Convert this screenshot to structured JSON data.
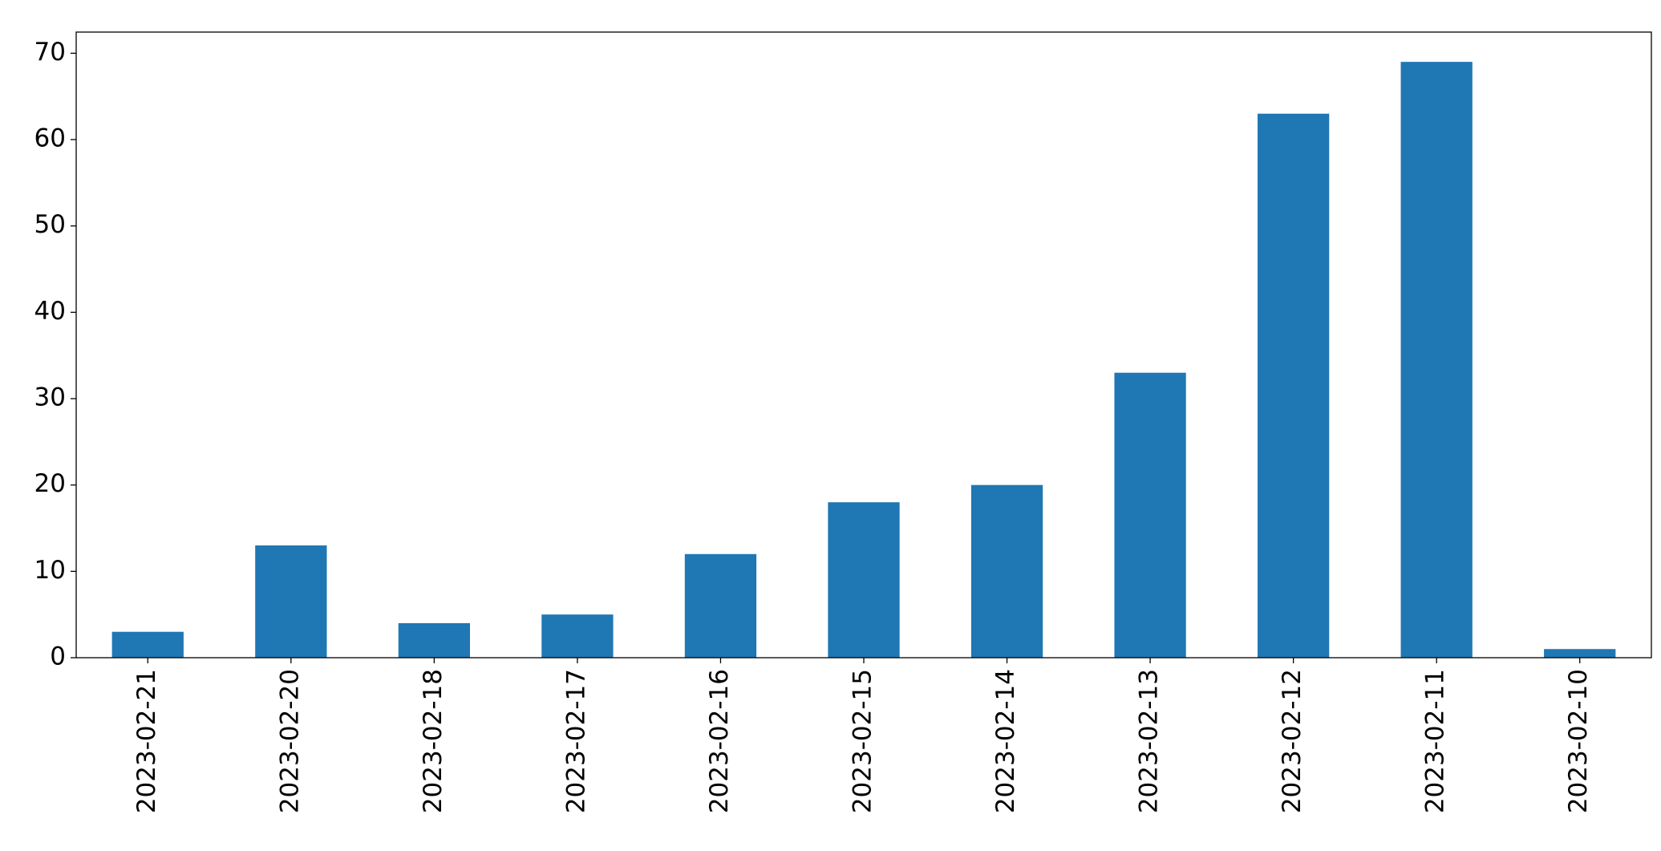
{
  "chart_data": {
    "type": "bar",
    "categories": [
      "2023-02-21",
      "2023-02-20",
      "2023-02-18",
      "2023-02-17",
      "2023-02-16",
      "2023-02-15",
      "2023-02-14",
      "2023-02-13",
      "2023-02-12",
      "2023-02-11",
      "2023-02-10"
    ],
    "values": [
      3,
      13,
      4,
      5,
      12,
      18,
      20,
      33,
      63,
      69,
      1
    ],
    "color": "#1f77b4",
    "ylim": [
      0,
      72.45
    ],
    "yticks": [
      0,
      10,
      20,
      30,
      40,
      50,
      60,
      70
    ],
    "grid": false
  }
}
